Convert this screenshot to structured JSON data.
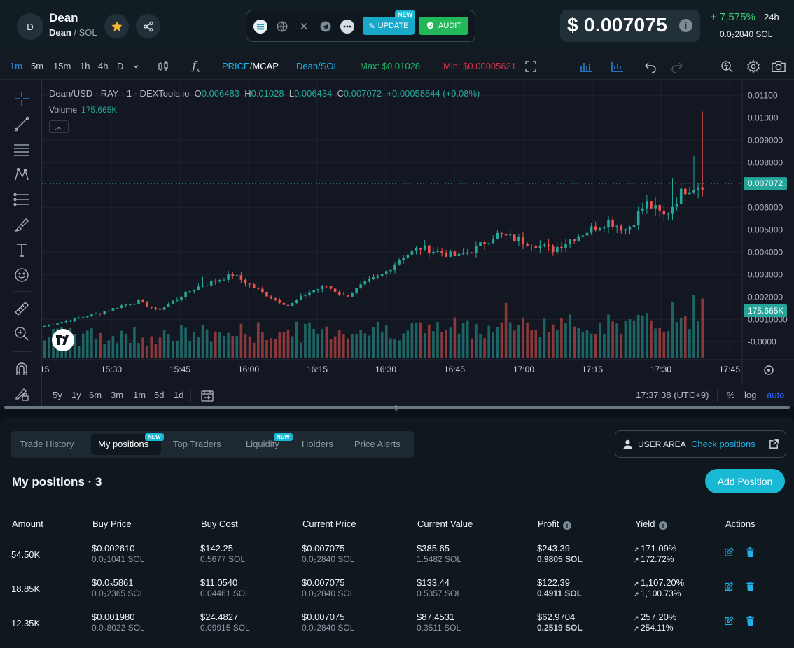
{
  "token": {
    "avatar_letter": "D",
    "name": "Dean",
    "base": "Dean",
    "quote": "SOL"
  },
  "header": {
    "update_label": "UPDATE",
    "update_badge": "NEW",
    "audit_label": "AUDIT",
    "price": "$ 0.007075",
    "change_pct": "+ 7,575%",
    "change_period": "24h",
    "price_sol": "0.0₂2840 SOL"
  },
  "toolbar": {
    "intervals": [
      "1m",
      "5m",
      "15m",
      "1h",
      "4h",
      "D"
    ],
    "active_interval": "1m",
    "price_toggle": "PRICE",
    "mcap_toggle": "MCAP",
    "pair_toggle": "Dean/SOL",
    "max_label": "Max: $0.01028",
    "min_label": "Min: $0.00005621"
  },
  "chart": {
    "symbol": "Dean/USD · RAY · 1 · DEXTools.io",
    "open": "0.006483",
    "high": "0.01028",
    "low": "0.006434",
    "close": "0.007072",
    "change": "+0.00058844 (+9.08%)",
    "volume_label": "Volume",
    "volume_value": "175.665K",
    "last_price_tag": "0.007072",
    "volume_tag": "175.665K",
    "y_ticks": [
      "0.01100",
      "0.01000",
      "0.009000",
      "0.008000",
      "0.007000",
      "0.006000",
      "0.005000",
      "0.004000",
      "0.003000",
      "0.002000",
      "0.0010000",
      "-0.0000"
    ],
    "x_ticks": [
      "15:15",
      "15:30",
      "15:45",
      "16:00",
      "16:15",
      "16:30",
      "16:45",
      "17:00",
      "17:15",
      "17:30",
      "17:45"
    ],
    "ranges": [
      "5y",
      "1y",
      "6m",
      "3m",
      "1m",
      "5d",
      "1d"
    ],
    "clock": "17:37:38 (UTC+9)",
    "pct_label": "%",
    "log_label": "log",
    "auto_label": "auto",
    "colors": {
      "up": "#26a69a",
      "down": "#ef5350",
      "bg": "#131722"
    }
  },
  "chart_data": {
    "type": "candlestick",
    "x_range": [
      "15:15",
      "17:45"
    ],
    "ylim": [
      -0.0003,
      0.0112
    ],
    "last_price": 0.007072,
    "high": 0.01028,
    "approx_closes": [
      0.0007,
      0.0009,
      0.0011,
      0.0013,
      0.0016,
      0.0018,
      0.0014,
      0.0019,
      0.0024,
      0.0027,
      0.003,
      0.0025,
      0.002,
      0.0016,
      0.0022,
      0.0025,
      0.002,
      0.0026,
      0.003,
      0.0038,
      0.0042,
      0.004,
      0.0038,
      0.0042,
      0.0048,
      0.0046,
      0.0044,
      0.0041,
      0.0046,
      0.005,
      0.0054,
      0.005,
      0.0062,
      0.0056,
      0.0068,
      0.00707
    ]
  },
  "tabs": [
    {
      "label": "Trade History",
      "badge": ""
    },
    {
      "label": "My positions",
      "badge": "NEW"
    },
    {
      "label": "Top Traders",
      "badge": ""
    },
    {
      "label": "Liquidity",
      "badge": "NEW"
    },
    {
      "label": "Holders",
      "badge": ""
    },
    {
      "label": "Price Alerts",
      "badge": ""
    }
  ],
  "user_area": {
    "label": "USER AREA",
    "link": "Check positions"
  },
  "positions": {
    "title": "My positions · 3",
    "add_label": "Add Position",
    "headers": [
      "Amount",
      "Buy Price",
      "Buy Cost",
      "Current Price",
      "Current Value",
      "Profit",
      "Yield",
      "Actions"
    ],
    "rows": [
      {
        "amount": "54.50K",
        "buy_price": "$0.002610",
        "buy_price_sol": "0.0₂1041 SOL",
        "buy_cost": "$142.25",
        "buy_cost_sol": "0.5677 SOL",
        "cur_price": "$0.007075",
        "cur_price_sol": "0.0₂2840 SOL",
        "cur_value": "$385.65",
        "cur_value_sol": "1.5482 SOL",
        "profit": "$243.39",
        "profit_sol": "0.9805 SOL",
        "yield_usd": "171.09%",
        "yield_sol": "172.72%"
      },
      {
        "amount": "18.85K",
        "buy_price": "$0.0₃5861",
        "buy_price_sol": "0.0₂2365 SOL",
        "buy_cost": "$11.0540",
        "buy_cost_sol": "0.04461 SOL",
        "cur_price": "$0.007075",
        "cur_price_sol": "0.0₂2840 SOL",
        "cur_value": "$133.44",
        "cur_value_sol": "0.5357 SOL",
        "profit": "$122.39",
        "profit_sol": "0.4911 SOL",
        "yield_usd": "1,107.20%",
        "yield_sol": "1,100.73%"
      },
      {
        "amount": "12.35K",
        "buy_price": "$0.001980",
        "buy_price_sol": "0.0₃8022 SOL",
        "buy_cost": "$24.4827",
        "buy_cost_sol": "0.09915 SOL",
        "cur_price": "$0.007075",
        "cur_price_sol": "0.0₂2840 SOL",
        "cur_value": "$87.4531",
        "cur_value_sol": "0.3511 SOL",
        "profit": "$62.9704",
        "profit_sol": "0.2519 SOL",
        "yield_usd": "257.20%",
        "yield_sol": "254.11%"
      }
    ]
  }
}
